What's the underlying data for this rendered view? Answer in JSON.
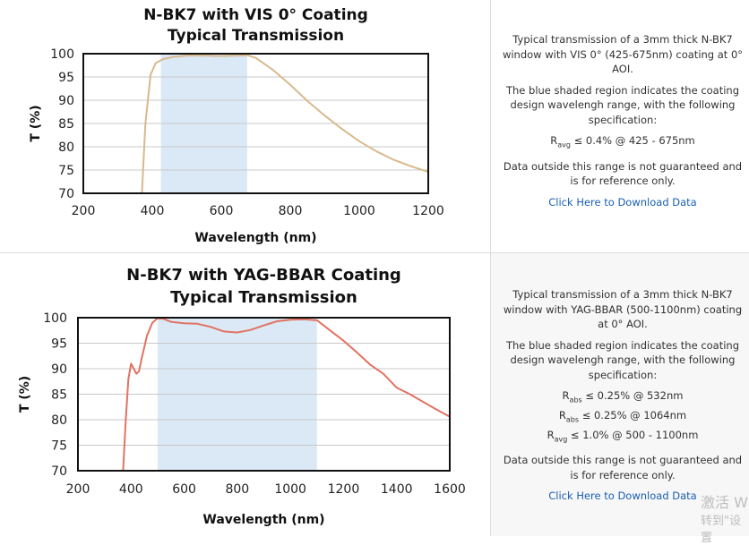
{
  "chart_data": [
    {
      "type": "line",
      "title": "N-BK7 with VIS 0° Coating",
      "subtitle": "Typical Transmission",
      "xlabel": "Wavelength (nm)",
      "ylabel": "T (%)",
      "xlim": [
        200,
        1200
      ],
      "ylim": [
        70,
        100
      ],
      "xticks": [
        200,
        400,
        600,
        800,
        1000,
        1200
      ],
      "yticks": [
        70,
        75,
        80,
        85,
        90,
        95,
        100
      ],
      "grid": true,
      "shaded_region": [
        425,
        675
      ],
      "line_color": "#d8b98e",
      "shade_color": "#dbe9f6",
      "series": [
        {
          "x": [
            370,
            380,
            395,
            410,
            430,
            460,
            500,
            550,
            600,
            650,
            675,
            700,
            750,
            800,
            850,
            900,
            950,
            1000,
            1050,
            1100,
            1150,
            1200
          ],
          "y": [
            70,
            85,
            95.5,
            98,
            98.8,
            99.3,
            99.6,
            99.6,
            99.5,
            99.6,
            99.7,
            99.1,
            96.5,
            93.3,
            89.8,
            86.7,
            83.8,
            81.2,
            79,
            77.2,
            75.8,
            74.6
          ]
        }
      ]
    },
    {
      "type": "line",
      "title": "N-BK7 with YAG-BBAR Coating",
      "subtitle": "Typical Transmission",
      "xlabel": "Wavelength (nm)",
      "ylabel": "T (%)",
      "xlim": [
        200,
        1600
      ],
      "ylim": [
        70,
        100
      ],
      "xticks": [
        200,
        400,
        600,
        800,
        1000,
        1200,
        1400,
        1600
      ],
      "yticks": [
        70,
        75,
        80,
        85,
        90,
        95,
        100
      ],
      "grid": true,
      "shaded_region": [
        500,
        1100
      ],
      "line_color": "#e27262",
      "shade_color": "#dbe9f6",
      "series": [
        {
          "x": [
            370,
            380,
            390,
            400,
            410,
            420,
            430,
            440,
            460,
            480,
            500,
            520,
            550,
            600,
            650,
            700,
            750,
            800,
            850,
            900,
            950,
            1000,
            1050,
            1100,
            1150,
            1200,
            1250,
            1300,
            1350,
            1400,
            1450,
            1500,
            1550,
            1600
          ],
          "y": [
            70,
            80,
            88,
            91,
            90,
            89,
            89.5,
            92,
            96.5,
            99,
            99.9,
            99.8,
            99.2,
            98.9,
            98.8,
            98.2,
            97.3,
            97.1,
            97.6,
            98.5,
            99.3,
            99.6,
            99.7,
            99.5,
            97.5,
            95.5,
            93.2,
            90.8,
            89,
            86.3,
            85,
            83.5,
            82,
            80.6
          ]
        }
      ]
    }
  ],
  "descriptions": [
    {
      "intro": "Typical transmission of a 3mm thick N-BK7 window with VIS 0° (425-675nm) coating at 0° AOI.",
      "shaded_note": "The blue shaded region indicates the coating design wavelengh range, with the following specification:",
      "specs": [
        {
          "symbol": "R",
          "sub": "avg",
          "rest": " ≤ 0.4% @ 425 - 675nm"
        }
      ],
      "disclaimer": "Data outside this range is not guaranteed and is for reference only.",
      "link": "Click Here to Download Data"
    },
    {
      "intro": "Typical transmission of a 3mm thick N-BK7 window with YAG-BBAR (500-1100nm) coating at 0° AOI.",
      "shaded_note": "The blue shaded region indicates the coating design wavelengh range, with the following specification:",
      "specs": [
        {
          "symbol": "R",
          "sub": "abs",
          "rest": " ≤ 0.25% @ 532nm"
        },
        {
          "symbol": "R",
          "sub": "abs",
          "rest": " ≤ 0.25% @ 1064nm"
        },
        {
          "symbol": "R",
          "sub": "avg",
          "rest": " ≤ 1.0% @ 500 - 1100nm"
        }
      ],
      "disclaimer": "Data outside this range is not guaranteed and is for reference only.",
      "link": "Click Here to Download Data"
    }
  ],
  "watermark": {
    "line1": "激活 W",
    "line2": "转到\"设置"
  }
}
